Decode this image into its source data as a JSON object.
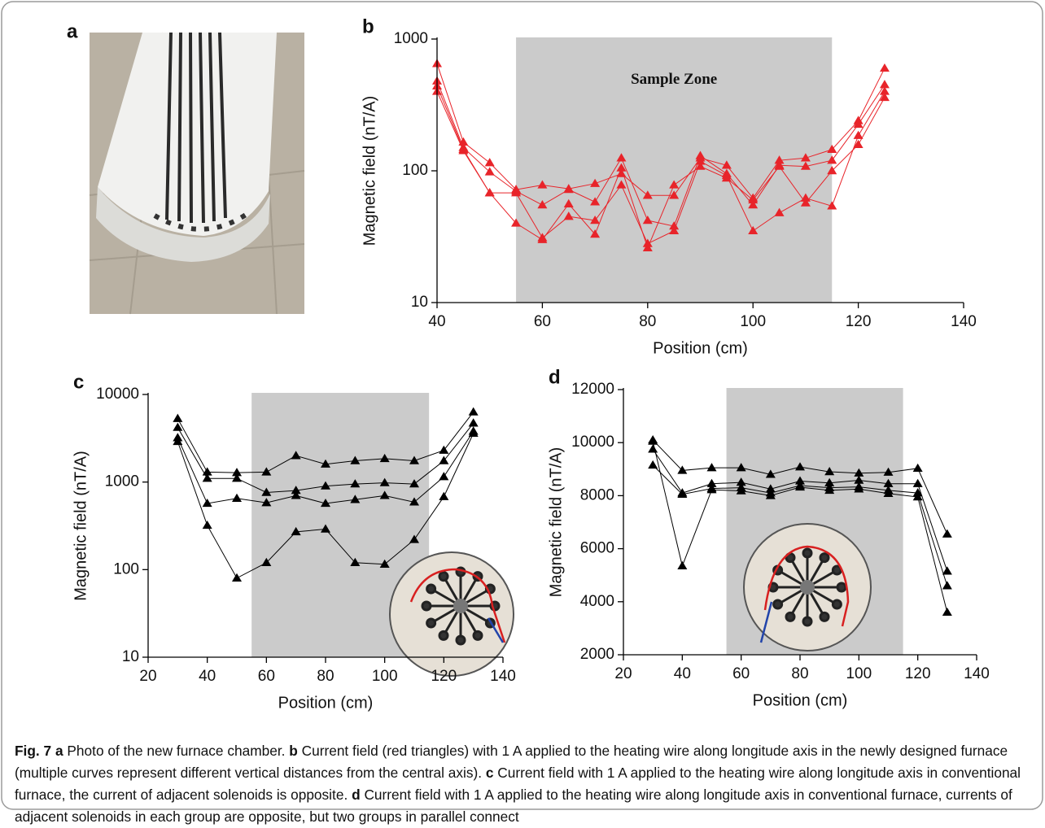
{
  "photo_panel": {
    "label": "a"
  },
  "chart_data": [
    {
      "type": "line",
      "panel": "b",
      "xlabel": "Position (cm)",
      "ylabel": "Magnetic field (nT/A)",
      "annotation": "Sample Zone",
      "xlim": [
        40,
        140
      ],
      "xticks": [
        40,
        60,
        80,
        100,
        120,
        140
      ],
      "ylim": [
        10,
        1000
      ],
      "yticks": [
        10,
        100,
        1000
      ],
      "log_y": true,
      "shade": [
        55,
        115
      ],
      "marker": "triangle",
      "x": [
        40,
        45,
        50,
        55,
        60,
        65,
        70,
        75,
        80,
        85,
        90,
        95,
        100,
        105,
        110,
        115,
        120,
        125
      ],
      "series": [
        {
          "color": "#e8242a",
          "values": [
            650,
            165,
            115,
            72,
            78,
            73,
            80,
            95,
            65,
            65,
            125,
            110,
            62,
            120,
            125,
            145,
            240,
            600
          ]
        },
        {
          "color": "#e8242a",
          "values": [
            480,
            150,
            98,
            70,
            55,
            72,
            58,
            125,
            42,
            38,
            130,
            95,
            55,
            110,
            108,
            120,
            225,
            450
          ]
        },
        {
          "color": "#e8242a",
          "values": [
            440,
            145,
            68,
            68,
            31,
            45,
            42,
            78,
            28,
            35,
            118,
            92,
            35,
            48,
            62,
            54,
            185,
            400
          ]
        },
        {
          "color": "#e8242a",
          "values": [
            400,
            142,
            68,
            40,
            30,
            56,
            33,
            105,
            26,
            78,
            108,
            88,
            60,
            108,
            57,
            100,
            158,
            360
          ]
        }
      ]
    },
    {
      "type": "line",
      "panel": "c",
      "xlabel": "Position (cm)",
      "ylabel": "Magnetic field (nT/A)",
      "xlim": [
        20,
        140
      ],
      "xticks": [
        20,
        40,
        60,
        80,
        100,
        120,
        140
      ],
      "ylim": [
        10,
        10000
      ],
      "yticks": [
        10,
        100,
        1000,
        10000
      ],
      "log_y": true,
      "shade": [
        55,
        115
      ],
      "marker": "triangle",
      "x": [
        30,
        40,
        50,
        60,
        70,
        80,
        90,
        100,
        110,
        120,
        130
      ],
      "series": [
        {
          "color": "#000000",
          "values": [
            5300,
            1300,
            1280,
            1300,
            2000,
            1600,
            1750,
            1850,
            1750,
            2300,
            6300
          ]
        },
        {
          "color": "#000000",
          "values": [
            4200,
            1100,
            1100,
            760,
            800,
            900,
            950,
            980,
            950,
            1750,
            4700
          ]
        },
        {
          "color": "#000000",
          "values": [
            3200,
            570,
            650,
            580,
            700,
            570,
            630,
            700,
            590,
            1150,
            3800
          ]
        },
        {
          "color": "#000000",
          "values": [
            2900,
            320,
            80,
            120,
            270,
            290,
            120,
            115,
            220,
            680,
            3600
          ]
        }
      ]
    },
    {
      "type": "line",
      "panel": "d",
      "xlabel": "Position (cm)",
      "ylabel": "Magnetic field (nT/A)",
      "xlim": [
        20,
        140
      ],
      "xticks": [
        20,
        40,
        60,
        80,
        100,
        120,
        140
      ],
      "ylim": [
        2000,
        12000
      ],
      "yticks": [
        2000,
        4000,
        6000,
        8000,
        10000,
        12000
      ],
      "log_y": false,
      "shade": [
        55,
        115
      ],
      "marker": "triangle",
      "x": [
        30,
        40,
        50,
        60,
        70,
        80,
        90,
        100,
        110,
        120,
        130
      ],
      "series": [
        {
          "color": "#000000",
          "values": [
            10100,
            8950,
            9050,
            9050,
            8800,
            9080,
            8900,
            8850,
            8880,
            9030,
            6550
          ]
        },
        {
          "color": "#000000",
          "values": [
            9750,
            8100,
            8450,
            8500,
            8250,
            8550,
            8480,
            8580,
            8450,
            8450,
            5150
          ]
        },
        {
          "color": "#000000",
          "values": [
            9150,
            8050,
            8270,
            8300,
            8100,
            8380,
            8300,
            8330,
            8200,
            8100,
            4600
          ]
        },
        {
          "color": "#000000",
          "values": [
            10050,
            5350,
            8220,
            8180,
            8000,
            8320,
            8200,
            8250,
            8080,
            7950,
            3600
          ]
        }
      ]
    }
  ],
  "caption": {
    "label": "Fig. 7",
    "parts": [
      {
        "key": "a",
        "text": "Photo of the new furnace chamber."
      },
      {
        "key": "b",
        "text": "Current field (red triangles) with 1 A applied to the heating wire along longitude axis in the newly designed furnace (multiple curves represent different vertical distances from the central axis)."
      },
      {
        "key": "c",
        "text": "Current field with 1 A applied to the heating wire along longitude axis in conventional furnace, the current of adjacent solenoids is opposite."
      },
      {
        "key": "d",
        "text": "Current field with 1 A applied to the heating wire along longitude axis in conventional furnace, currents of adjacent solenoids in each group are opposite, but two groups in parallel connect"
      }
    ]
  }
}
